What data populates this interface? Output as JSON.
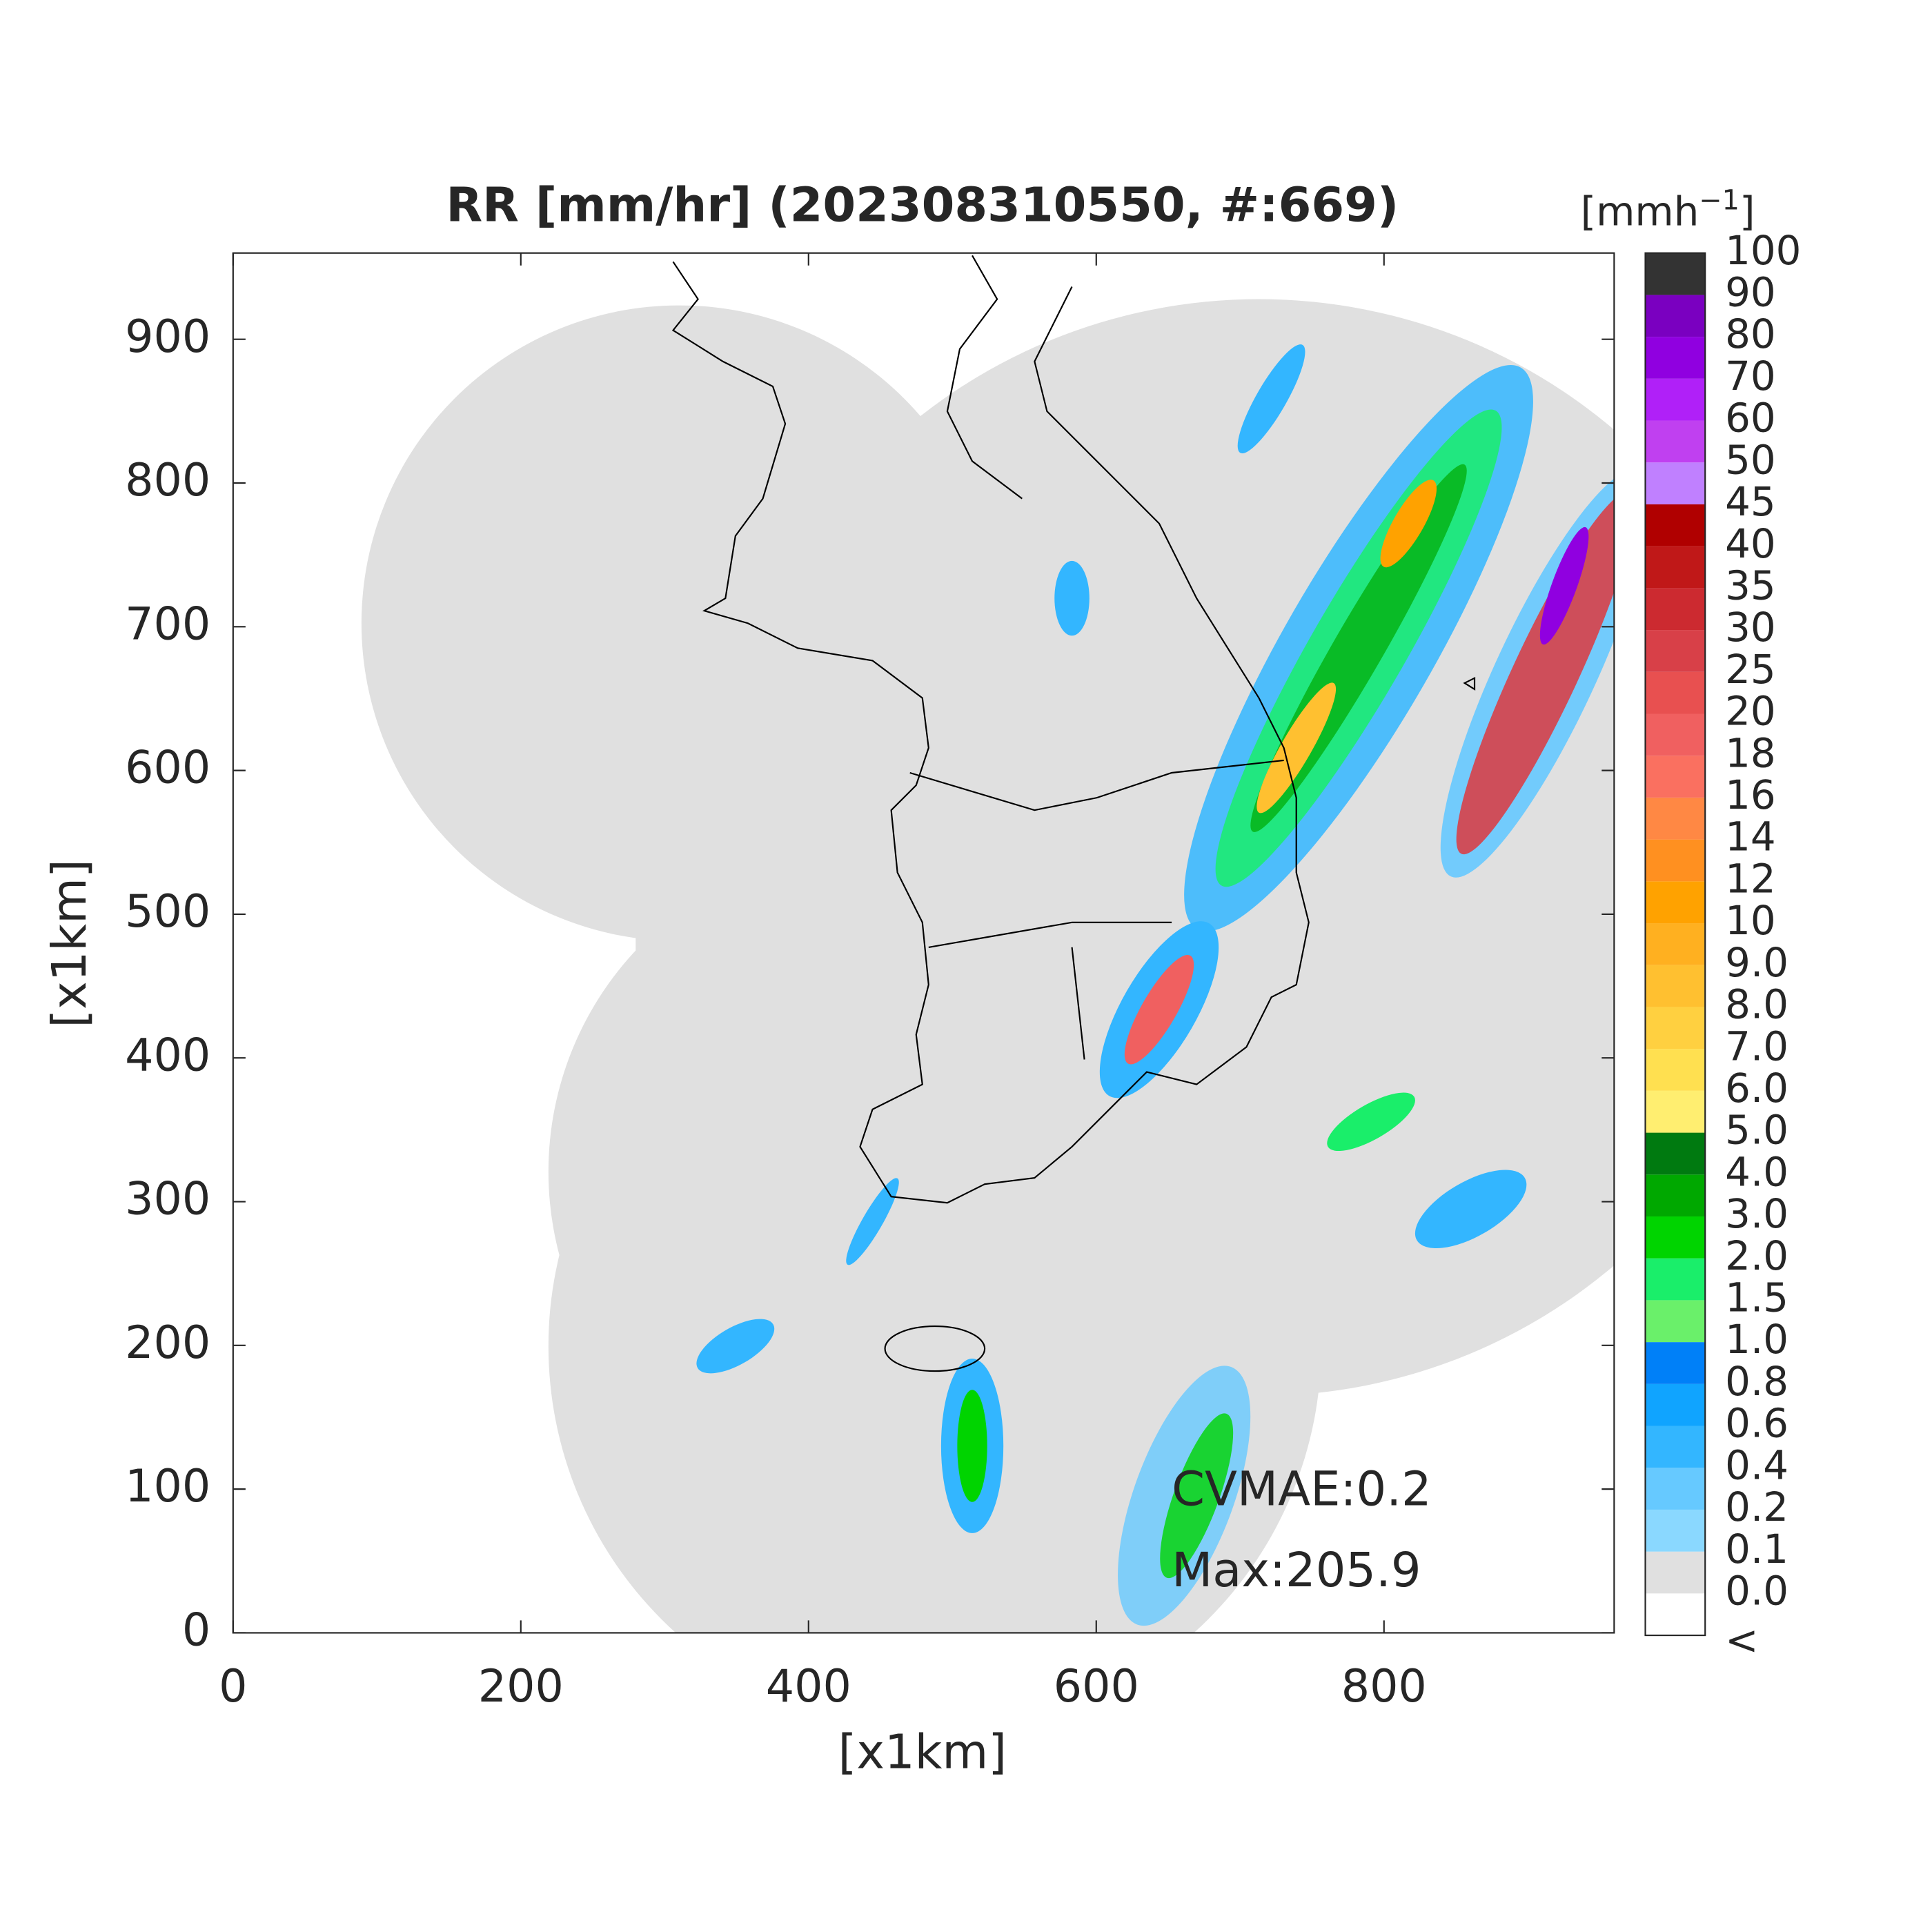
{
  "chart_data": {
    "type": "map",
    "title": "RR [mm/hr] (202308310550, #:669)",
    "x_label": "[x1km]",
    "y_label": "[x1km]",
    "xlim": [
      0,
      960
    ],
    "ylim": [
      0,
      960
    ],
    "xticks": [
      0,
      200,
      400,
      600,
      800
    ],
    "yticks": [
      0,
      100,
      200,
      300,
      400,
      500,
      600,
      700,
      800,
      900
    ],
    "annotations": [
      "CVMAE:0.2",
      "Max:205.9"
    ],
    "colorbar": {
      "unit": "[mmh",
      "unit_sup": "−1",
      "unit_end": "]",
      "labels": [
        "<",
        "0.0",
        "0.1",
        "0.2",
        "0.4",
        "0.6",
        "0.8",
        "1.0",
        "1.5",
        "2.0",
        "3.0",
        "4.0",
        "5.0",
        "6.0",
        "7.0",
        "8.0",
        "9.0",
        "10",
        "12",
        "14",
        "16",
        "18",
        "20",
        "25",
        "30",
        "35",
        "40",
        "45",
        "50",
        "60",
        "70",
        "80",
        "90",
        "100"
      ],
      "colors": [
        "#ffffff",
        "#e0e0e0",
        "#8ad8ff",
        "#66c9ff",
        "#33b6ff",
        "#10a4ff",
        "#0080f8",
        "#6af06a",
        "#1aee6a",
        "#00d400",
        "#00a800",
        "#007a10",
        "#ffee70",
        "#ffe050",
        "#ffd040",
        "#ffc030",
        "#ffb020",
        "#ffa200",
        "#ff9020",
        "#ff8844",
        "#fa7060",
        "#f06060",
        "#e85050",
        "#d84048",
        "#cc2a30",
        "#c01818",
        "#b00000",
        "#c080ff",
        "#c040f0",
        "#b020f8",
        "#9000e0",
        "#7a00c0",
        "#333333"
      ]
    }
  }
}
